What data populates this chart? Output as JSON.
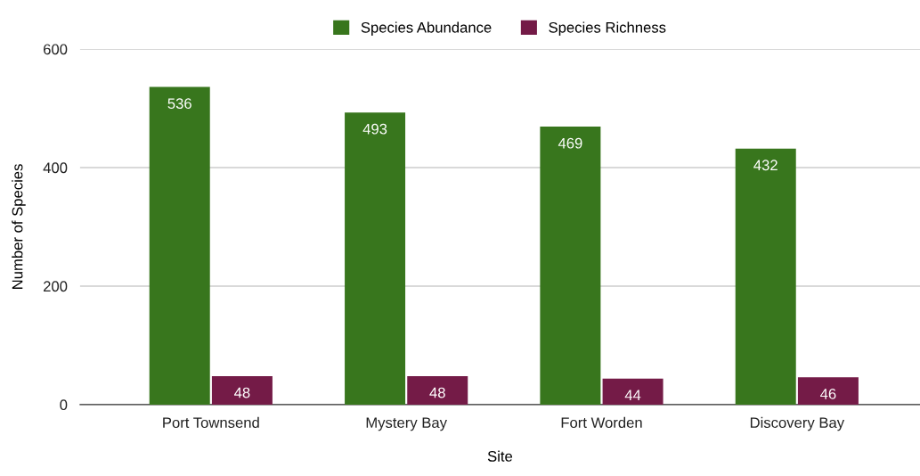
{
  "chart_data": {
    "type": "bar",
    "xlabel": "Site",
    "ylabel": "Number of Species",
    "categories": [
      "Port Townsend",
      "Mystery Bay",
      "Fort Worden",
      "Discovery Bay"
    ],
    "series": [
      {
        "name": "Species Abundance",
        "color": "#38761d",
        "values": [
          536,
          493,
          469,
          432
        ]
      },
      {
        "name": "Species Richness",
        "color": "#741b47",
        "values": [
          48,
          48,
          44,
          46
        ]
      }
    ],
    "ylim": [
      0,
      600
    ],
    "yticks": [
      0,
      200,
      400,
      600
    ],
    "grid": "y",
    "legend": "top",
    "data_labels": true
  }
}
